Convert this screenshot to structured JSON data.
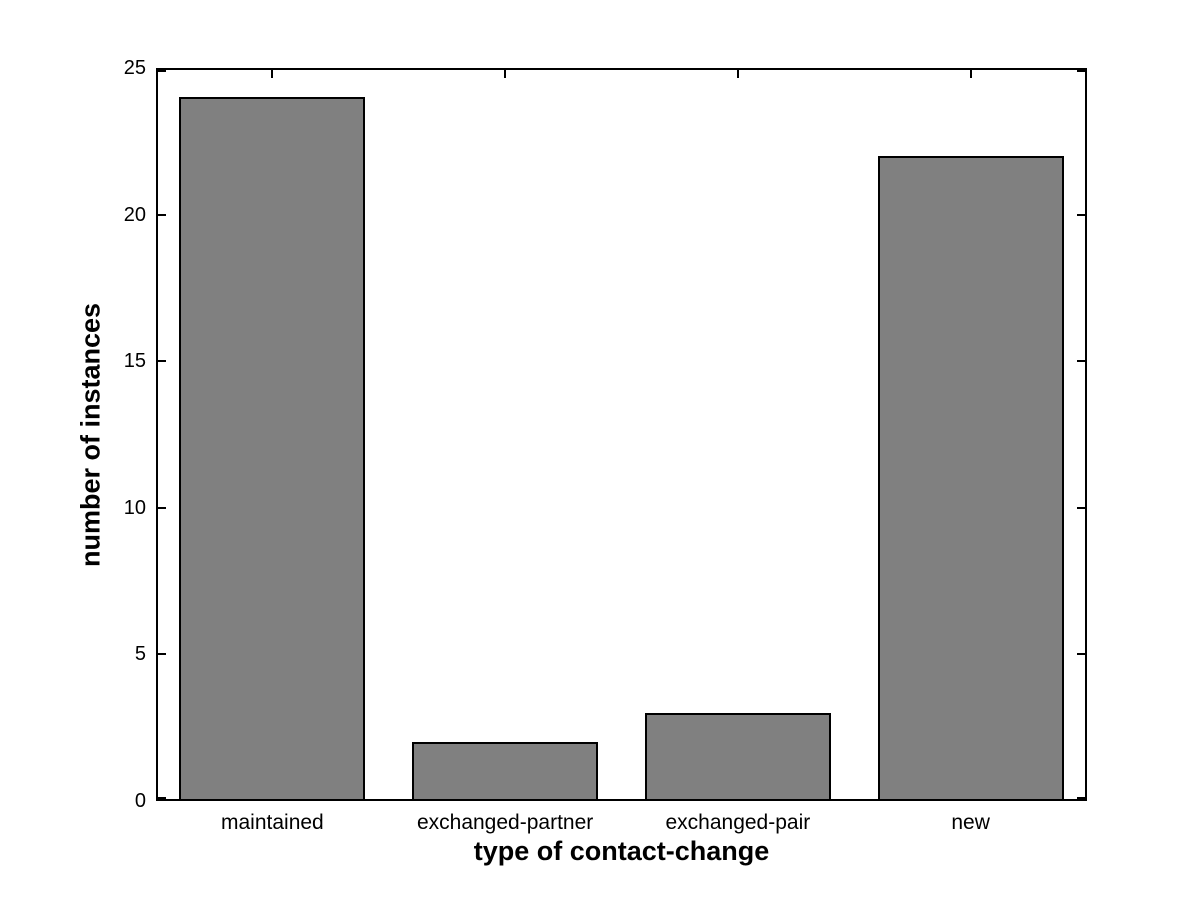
{
  "figure": {
    "background_color": "#ffffff",
    "axis_color": "#000000"
  },
  "chart_data": {
    "type": "bar",
    "title": "",
    "xlabel": "type of contact-change",
    "ylabel": "number of instances",
    "categories": [
      "maintained",
      "exchanged-partner",
      "exchanged-pair",
      "new"
    ],
    "values": [
      24,
      2,
      3,
      22
    ],
    "ylim": [
      0,
      25
    ],
    "yticks": [
      0,
      5,
      10,
      15,
      20,
      25
    ],
    "bar_color": "#808080",
    "bar_edge_color": "#000000",
    "bar_width_fraction": 0.8,
    "grid": false,
    "legend_position": "none",
    "tick_direction": "in",
    "box": true
  }
}
